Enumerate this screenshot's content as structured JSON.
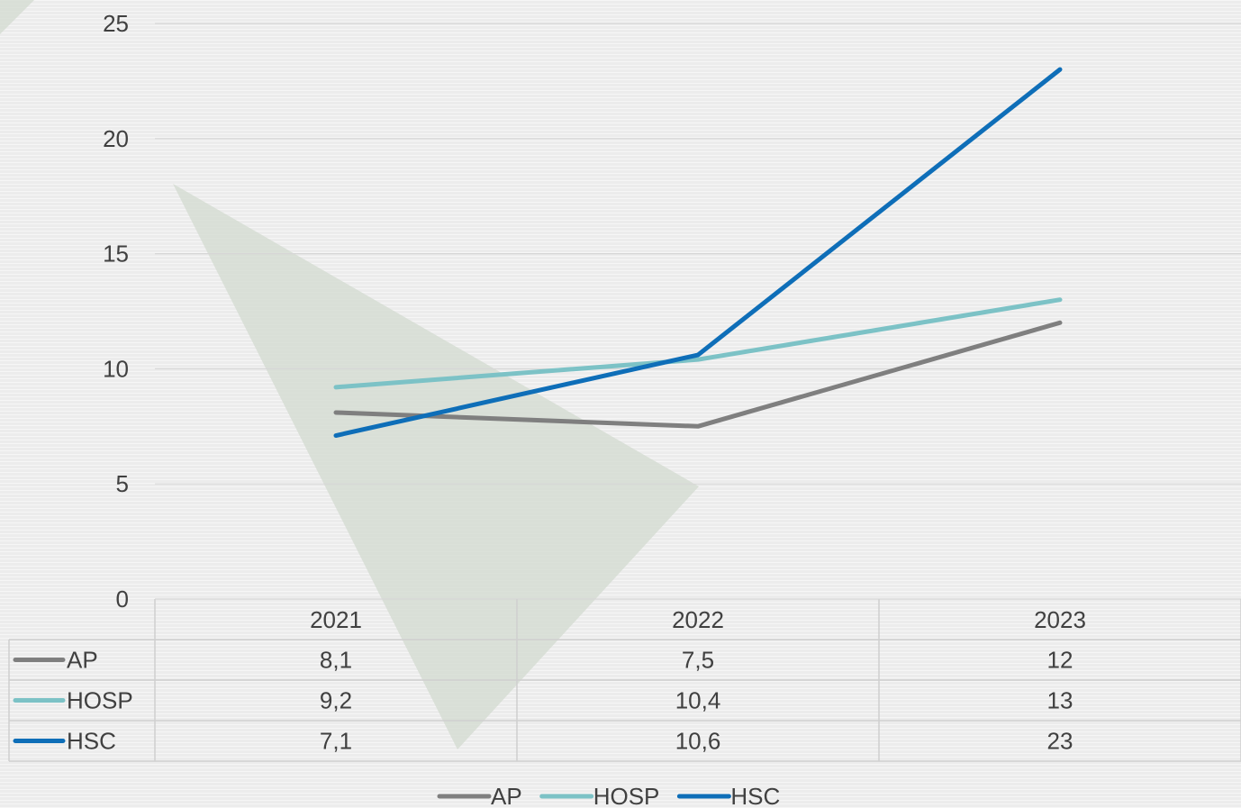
{
  "chart_data": {
    "type": "line",
    "categories": [
      "2021",
      "2022",
      "2023"
    ],
    "series": [
      {
        "name": "AP",
        "values": [
          8.1,
          7.5,
          12
        ],
        "labels": [
          "8,1",
          "7,5",
          "12"
        ],
        "color": "#7f7f7f"
      },
      {
        "name": "HOSP",
        "values": [
          9.2,
          10.4,
          13
        ],
        "labels": [
          "9,2",
          "10,4",
          "13"
        ],
        "color": "#7cc2c6"
      },
      {
        "name": "HSC",
        "values": [
          7.1,
          10.6,
          23
        ],
        "labels": [
          "7,1",
          "10,6",
          "23"
        ],
        "color": "#0e6eb8"
      }
    ],
    "ylim": [
      0,
      25
    ],
    "yticks": [
      "0",
      "5",
      "10",
      "15",
      "20",
      "25"
    ],
    "title": "",
    "xlabel": "",
    "ylabel": "",
    "grid": true,
    "legend": "bottom",
    "data_table": true
  },
  "colors": {
    "gridline": "#d6d6d6",
    "table_border": "#cfcfcf",
    "decor_triangle": "#d6ddd4"
  }
}
